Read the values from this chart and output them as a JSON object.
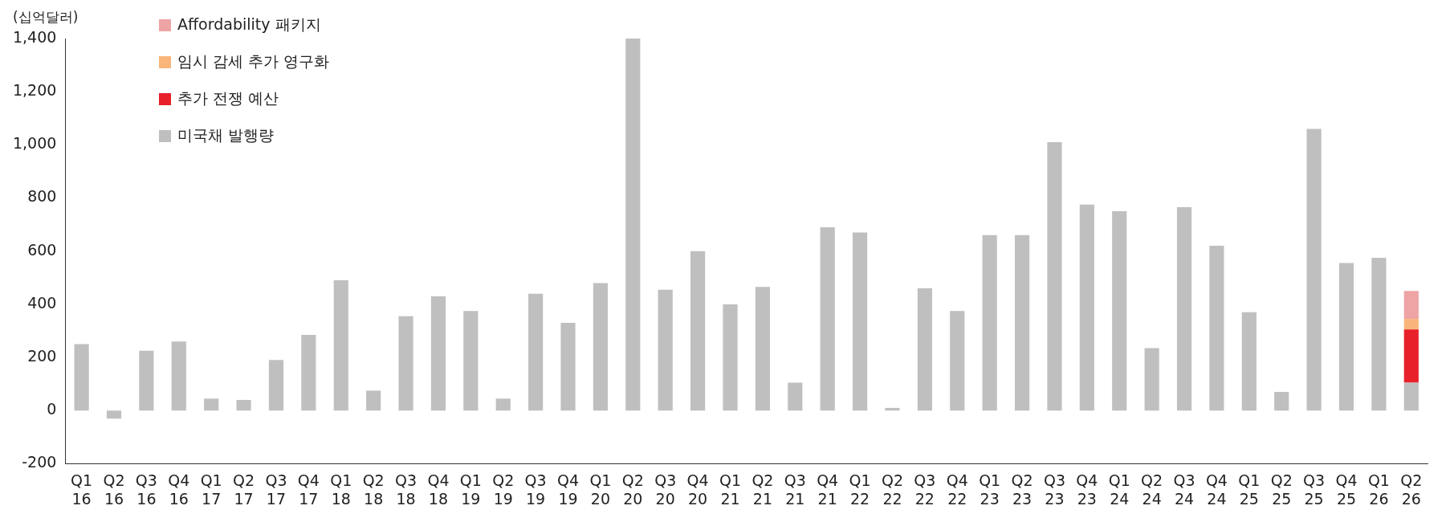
{
  "chart_data": {
    "type": "bar",
    "ylabel": "(십억달러)",
    "stacked": true,
    "legend": "top left",
    "grid": false,
    "categories": [
      "Q1 16",
      "Q2 16",
      "Q3 16",
      "Q4 16",
      "Q1 17",
      "Q2 17",
      "Q3 17",
      "Q4 17",
      "Q1 18",
      "Q2 18",
      "Q3 18",
      "Q4 18",
      "Q1 19",
      "Q2 19",
      "Q3 19",
      "Q4 19",
      "Q1 20",
      "Q2 20",
      "Q3 20",
      "Q4 20",
      "Q1 21",
      "Q2 21",
      "Q3 21",
      "Q4 21",
      "Q1 22",
      "Q2 22",
      "Q3 22",
      "Q4 22",
      "Q1 23",
      "Q2 23",
      "Q3 23",
      "Q4 23",
      "Q1 24",
      "Q2 24",
      "Q3 24",
      "Q4 24",
      "Q1 25",
      "Q2 25",
      "Q3 25",
      "Q4 25",
      "Q1 26",
      "Q2 26"
    ],
    "ylim": [
      -200,
      1400
    ],
    "yticks": [
      {
        "value": -200,
        "label": "-200"
      },
      0,
      200,
      400,
      600,
      800,
      {
        "value": 1000,
        "label": "1,000"
      },
      {
        "value": 1200,
        "label": "1,200"
      },
      {
        "value": 1400,
        "label": "1,400"
      }
    ],
    "series": [
      {
        "name": "미국채 발행량",
        "color": "#bfbfbf",
        "values": [
          250,
          -30,
          225,
          260,
          45,
          40,
          190,
          285,
          490,
          75,
          355,
          430,
          375,
          45,
          440,
          330,
          480,
          1400,
          455,
          600,
          400,
          465,
          105,
          690,
          670,
          10,
          460,
          375,
          660,
          660,
          1010,
          775,
          750,
          235,
          765,
          620,
          370,
          70,
          1060,
          555,
          575,
          105
        ]
      },
      {
        "name": "추가 전쟁 예산",
        "color": "#e8202a",
        "values": [
          null,
          null,
          null,
          null,
          null,
          null,
          null,
          null,
          null,
          null,
          null,
          null,
          null,
          null,
          null,
          null,
          null,
          null,
          null,
          null,
          null,
          null,
          null,
          null,
          null,
          null,
          null,
          null,
          null,
          null,
          null,
          null,
          null,
          null,
          null,
          null,
          null,
          null,
          null,
          null,
          null,
          200
        ]
      },
      {
        "name": "임시 감세 추가 영구화",
        "color": "#f9b57a",
        "values": [
          null,
          null,
          null,
          null,
          null,
          null,
          null,
          null,
          null,
          null,
          null,
          null,
          null,
          null,
          null,
          null,
          null,
          null,
          null,
          null,
          null,
          null,
          null,
          null,
          null,
          null,
          null,
          null,
          null,
          null,
          null,
          null,
          null,
          null,
          null,
          null,
          null,
          null,
          null,
          null,
          null,
          40
        ]
      },
      {
        "name": "Affordability 패키지",
        "color": "#eea3a5",
        "values": [
          null,
          null,
          null,
          null,
          null,
          null,
          null,
          null,
          null,
          null,
          null,
          null,
          null,
          null,
          null,
          null,
          null,
          null,
          null,
          null,
          null,
          null,
          null,
          null,
          null,
          null,
          null,
          null,
          null,
          null,
          null,
          null,
          null,
          null,
          null,
          null,
          null,
          null,
          null,
          null,
          null,
          105
        ]
      }
    ]
  }
}
